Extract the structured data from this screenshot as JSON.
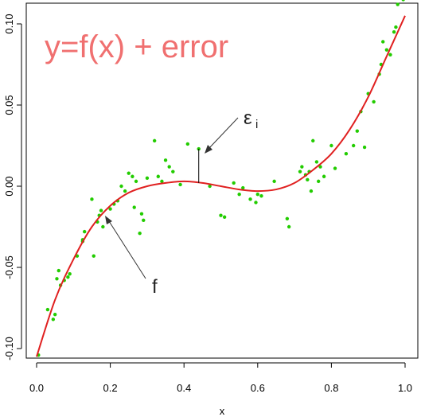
{
  "chart_data": {
    "type": "scatter",
    "title": "y=f(x) + error",
    "xlabel": "x",
    "ylabel": "",
    "xlim": [
      0.0,
      1.0
    ],
    "ylim": [
      -0.1,
      0.1
    ],
    "x_ticks": [
      "0.0",
      "0.2",
      "0.4",
      "0.6",
      "0.8",
      "1.0"
    ],
    "y_ticks": [
      "-0.10",
      "-0.05",
      "0.00",
      "0.05",
      "0.10"
    ],
    "grid": false,
    "legend": "none",
    "annotations": {
      "curve_label": "f",
      "error_label": "ε",
      "error_subscript": "i",
      "error_x": 0.44,
      "error_point_y": 0.023,
      "error_curve_y": 0.002
    },
    "colors": {
      "points": "#22cc00",
      "curve": "#e02020",
      "title": "#f07070"
    },
    "curve": {
      "x": [
        0.0,
        0.05,
        0.1,
        0.15,
        0.2,
        0.25,
        0.3,
        0.35,
        0.4,
        0.45,
        0.5,
        0.55,
        0.6,
        0.65,
        0.7,
        0.75,
        0.8,
        0.85,
        0.9,
        0.95,
        1.0
      ],
      "y": [
        -0.105,
        -0.07,
        -0.045,
        -0.025,
        -0.012,
        -0.004,
        0.0,
        0.002,
        0.003,
        0.002,
        0.0,
        -0.002,
        -0.003,
        -0.002,
        0.002,
        0.01,
        0.02,
        0.035,
        0.055,
        0.08,
        0.105
      ]
    },
    "series": [
      {
        "x": [
          0.005,
          0.03,
          0.045,
          0.05,
          0.055,
          0.06,
          0.065,
          0.075,
          0.085,
          0.09,
          0.11,
          0.125,
          0.125,
          0.13,
          0.15,
          0.155,
          0.165,
          0.17,
          0.175,
          0.18,
          0.2,
          0.21,
          0.22,
          0.23,
          0.24,
          0.25,
          0.26,
          0.265,
          0.27,
          0.28,
          0.285,
          0.29,
          0.3,
          0.32,
          0.33,
          0.34,
          0.35,
          0.36,
          0.37,
          0.39,
          0.41,
          0.44,
          0.47,
          0.5,
          0.51,
          0.535,
          0.55,
          0.56,
          0.58,
          0.595,
          0.6,
          0.61,
          0.645,
          0.68,
          0.685,
          0.715,
          0.72,
          0.73,
          0.735,
          0.74,
          0.745,
          0.75,
          0.76,
          0.765,
          0.77,
          0.78,
          0.8,
          0.81,
          0.84,
          0.86,
          0.87,
          0.88,
          0.89,
          0.9,
          0.915,
          0.93,
          0.935,
          0.94,
          0.95,
          0.96,
          0.97,
          0.975,
          0.98,
          0.995
        ],
        "y": [
          -0.104,
          -0.076,
          -0.082,
          -0.079,
          -0.057,
          -0.052,
          -0.061,
          -0.058,
          -0.056,
          -0.054,
          -0.043,
          -0.034,
          -0.033,
          -0.028,
          -0.008,
          -0.043,
          -0.022,
          -0.018,
          -0.015,
          -0.025,
          -0.014,
          -0.011,
          -0.009,
          0.0,
          -0.003,
          0.008,
          0.006,
          -0.013,
          0.003,
          -0.029,
          -0.017,
          -0.021,
          0.005,
          0.028,
          0.006,
          0.003,
          0.016,
          0.012,
          0.009,
          0.001,
          0.026,
          0.023,
          0.0,
          -0.018,
          -0.019,
          0.002,
          -0.005,
          -0.001,
          -0.008,
          -0.01,
          -0.005,
          -0.006,
          0.003,
          -0.02,
          -0.025,
          0.009,
          0.012,
          0.007,
          0.004,
          0.009,
          -0.003,
          0.028,
          0.015,
          0.003,
          0.012,
          0.006,
          0.025,
          0.011,
          0.02,
          0.025,
          0.034,
          0.046,
          0.024,
          0.057,
          0.052,
          0.069,
          0.075,
          0.089,
          0.084,
          0.081,
          0.095,
          0.098,
          0.112,
          0.115
        ]
      }
    ]
  }
}
